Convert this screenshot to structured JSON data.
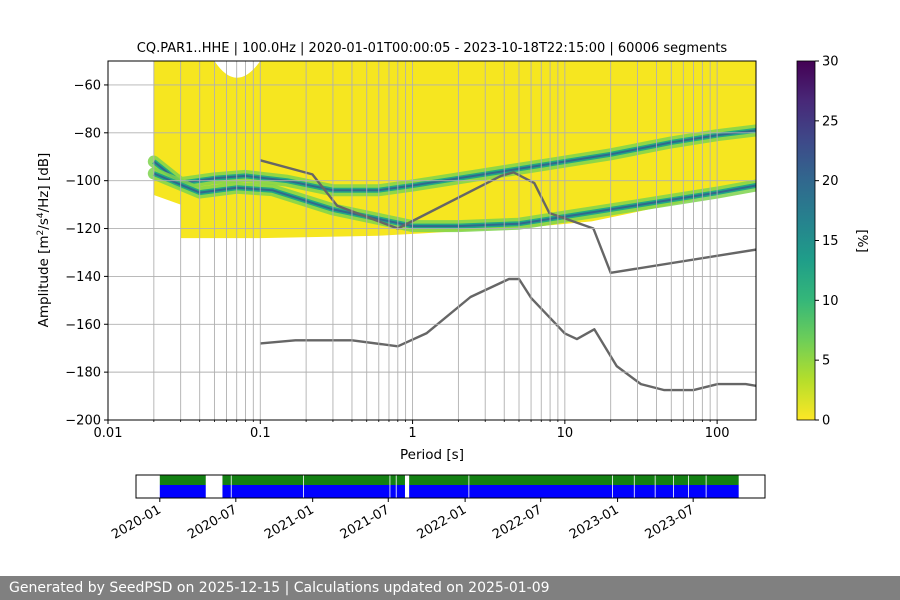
{
  "figure": {
    "title": "CQ.PAR1..HHE | 100.0Hz | 2020-01-01T00:00:05 - 2023-10-18T22:15:00 | 60006 segments",
    "footer": "Generated by SeedPSD on 2025-12-15 | Calculations updated on 2025-01-09"
  },
  "chart_data": [
    {
      "type": "heatmap",
      "title": "CQ.PAR1..HHE | 100.0Hz | 2020-01-01T00:00:05 - 2023-10-18T22:15:00 | 60006 segments",
      "xlabel": "Period [s]",
      "ylabel": "Amplitude [m²/s⁴/Hz] [dB]",
      "x_scale": "log",
      "xlim": [
        0.01,
        180
      ],
      "ylim": [
        -200,
        -50
      ],
      "x_ticks": [
        "0.01",
        "0.1",
        "1",
        "10",
        "100"
      ],
      "y_ticks": [
        "−200",
        "−180",
        "−160",
        "−140",
        "−120",
        "−100",
        "−80",
        "−60"
      ],
      "grid": "on",
      "colorbar": {
        "label": "[%]",
        "range": [
          0,
          30
        ],
        "ticks": [
          "0",
          "5",
          "10",
          "15",
          "20",
          "25",
          "30"
        ],
        "colormap": "viridis"
      },
      "density_bands": [
        {
          "name": "upper_mode",
          "points": [
            [
              0.02,
              -92
            ],
            [
              0.03,
              -101
            ],
            [
              0.05,
              -99
            ],
            [
              0.08,
              -98
            ],
            [
              0.15,
              -100
            ],
            [
              0.3,
              -104
            ],
            [
              0.6,
              -104
            ],
            [
              1,
              -102
            ],
            [
              2,
              -99
            ],
            [
              4,
              -96
            ],
            [
              8,
              -93
            ],
            [
              20,
              -89
            ],
            [
              50,
              -84
            ],
            [
              100,
              -81
            ],
            [
              180,
              -79
            ]
          ]
        },
        {
          "name": "lower_mode",
          "points": [
            [
              0.02,
              -97
            ],
            [
              0.04,
              -105
            ],
            [
              0.07,
              -103
            ],
            [
              0.12,
              -104
            ],
            [
              0.3,
              -112
            ],
            [
              0.6,
              -116
            ],
            [
              1,
              -119
            ],
            [
              2,
              -119
            ],
            [
              5,
              -118
            ],
            [
              10,
              -115
            ],
            [
              20,
              -112
            ],
            [
              50,
              -108
            ],
            [
              100,
              -105
            ],
            [
              180,
              -102
            ]
          ]
        }
      ],
      "noise_models": [
        {
          "name": "NHNM",
          "points": [
            [
              0.1,
              -91.5
            ],
            [
              0.22,
              -97.4
            ],
            [
              0.32,
              -110.5
            ],
            [
              0.8,
              -120
            ],
            [
              3.8,
              -98
            ],
            [
              4.6,
              -96.5
            ],
            [
              6.3,
              -101
            ],
            [
              7.9,
              -113.5
            ],
            [
              15.4,
              -120
            ],
            [
              20,
              -138.5
            ],
            [
              180,
              -128.8
            ]
          ]
        },
        {
          "name": "NLNM",
          "points": [
            [
              0.1,
              -168
            ],
            [
              0.17,
              -166.7
            ],
            [
              0.4,
              -166.7
            ],
            [
              0.8,
              -169.2
            ],
            [
              1.24,
              -163.7
            ],
            [
              2.4,
              -148.6
            ],
            [
              4.3,
              -141.1
            ],
            [
              5,
              -141.1
            ],
            [
              6,
              -149
            ],
            [
              10,
              -163.8
            ],
            [
              12,
              -166.2
            ],
            [
              15.6,
              -162.1
            ],
            [
              21.9,
              -177.5
            ],
            [
              31.6,
              -185
            ],
            [
              45,
              -187.5
            ],
            [
              70,
              -187.5
            ],
            [
              101,
              -185
            ],
            [
              154,
              -185
            ],
            [
              180,
              -185.7
            ]
          ]
        }
      ]
    },
    {
      "type": "timeline",
      "x_ticks": [
        "2020-01",
        "2020-07",
        "2021-01",
        "2021-07",
        "2022-01",
        "2022-07",
        "2023-01",
        "2023-07"
      ],
      "data_start": "2020-01-01",
      "data_end": "2023-10-18",
      "gaps": [
        [
          "2020-04-20",
          "2020-05-30"
        ],
        [
          "2021-08-10",
          "2021-08-20"
        ]
      ]
    }
  ]
}
